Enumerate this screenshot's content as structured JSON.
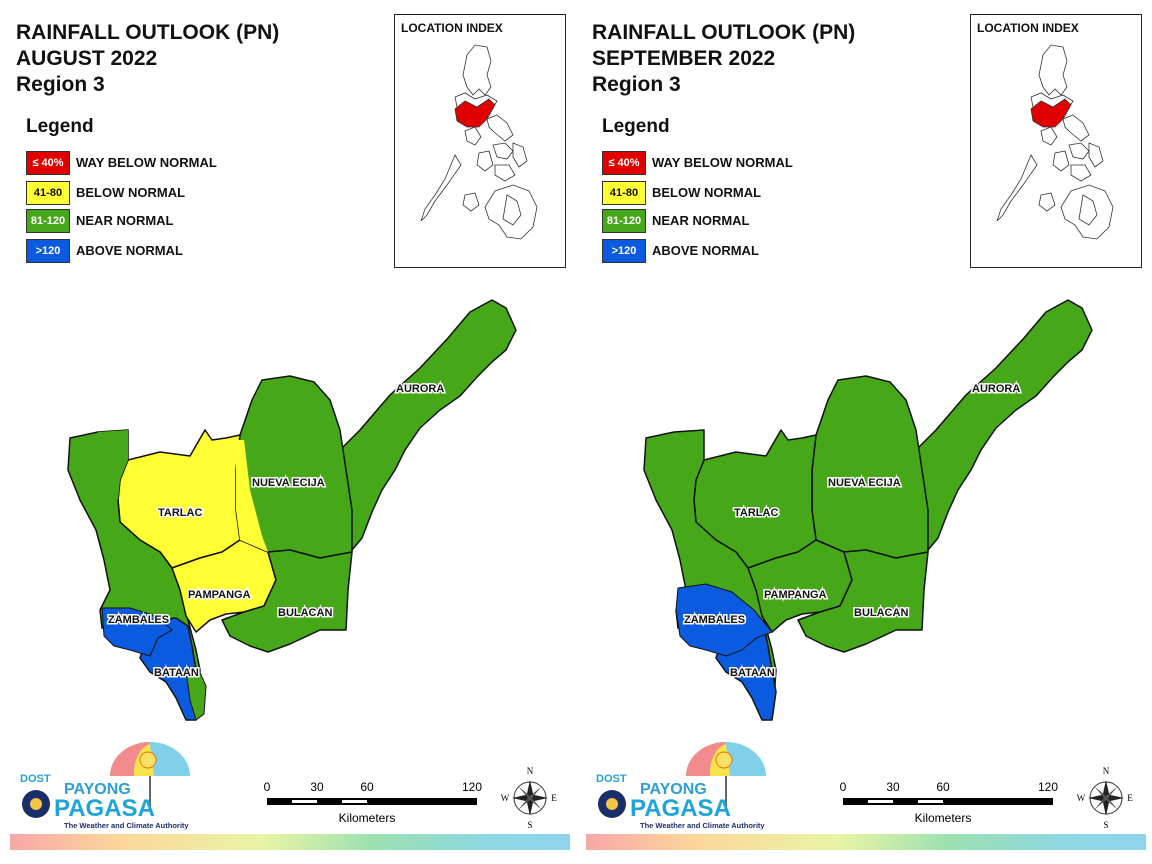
{
  "colors": {
    "way_below": "#e00000",
    "below": "#ffff33",
    "near": "#46a818",
    "above": "#0a5be0",
    "location_highlight": "#e00000"
  },
  "legend": {
    "title": "Legend",
    "items": [
      {
        "range": "≤ 40%",
        "label": "WAY BELOW NORMAL"
      },
      {
        "range": "41-80",
        "label": "BELOW NORMAL"
      },
      {
        "range": "81-120",
        "label": "NEAR NORMAL"
      },
      {
        "range": ">120",
        "label": "ABOVE NORMAL"
      }
    ]
  },
  "location_index": "LOCATION INDEX",
  "scale": {
    "ticks": [
      "0",
      "30",
      "60",
      "120"
    ],
    "unit": "Kilometers"
  },
  "compass": {
    "n": "N",
    "s": "S",
    "e": "E",
    "w": "W"
  },
  "logo": {
    "dost": "DOST",
    "payong": "PAYONG",
    "pagasa": "PAGASA",
    "tagline": "The Weather and Climate Authority"
  },
  "maps": [
    {
      "title_line1": "RAINFALL OUTLOOK (PN)",
      "title_line2": "AUGUST 2022",
      "title_line3": "Region 3",
      "provinces": {
        "aurora": {
          "name": "AURORA",
          "category": "near"
        },
        "nueva_ecija": {
          "name": "NUEVA ECIJA",
          "category": "near"
        },
        "tarlac": {
          "name": "TARLAC",
          "category": "below"
        },
        "pampanga": {
          "name": "PAMPANGA",
          "category": "below"
        },
        "bulacan": {
          "name": "BULACAN",
          "category": "near"
        },
        "zambales": {
          "name": "ZAMBALES",
          "category": "mixed"
        },
        "bataan": {
          "name": "BATAAN",
          "category": "above"
        }
      }
    },
    {
      "title_line1": "RAINFALL OUTLOOK (PN)",
      "title_line2": "SEPTEMBER 2022",
      "title_line3": "Region 3",
      "provinces": {
        "aurora": {
          "name": "AURORA",
          "category": "near"
        },
        "nueva_ecija": {
          "name": "NUEVA ECIJA",
          "category": "near"
        },
        "tarlac": {
          "name": "TARLAC",
          "category": "near"
        },
        "pampanga": {
          "name": "PAMPANGA",
          "category": "near"
        },
        "bulacan": {
          "name": "BULACAN",
          "category": "near"
        },
        "zambales": {
          "name": "ZAMBALES",
          "category": "mixed"
        },
        "bataan": {
          "name": "BATAAN",
          "category": "above"
        }
      }
    }
  ]
}
